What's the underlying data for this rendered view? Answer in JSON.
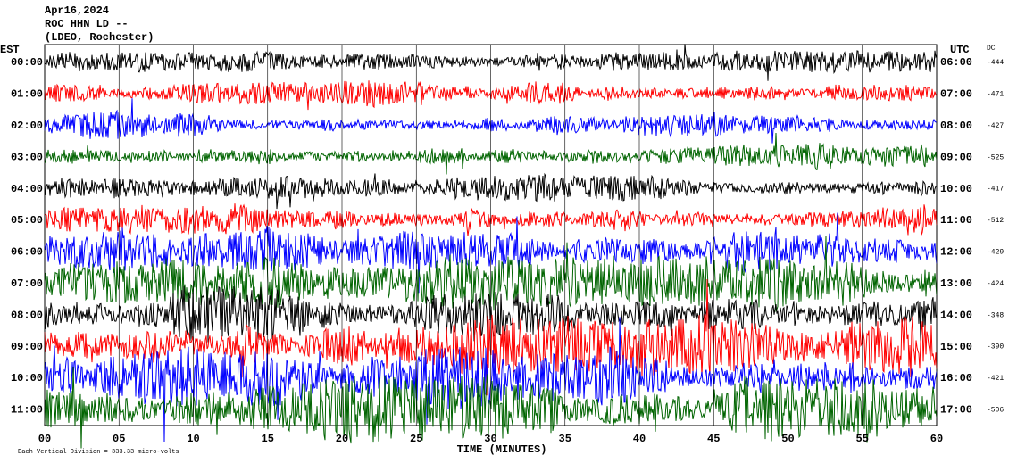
{
  "chart_data": {
    "type": "helicorder",
    "title": "Apr16,2024",
    "subtitle": "ROC HHN LD --",
    "caption": "(LDEO, Rochester)",
    "left_axis_label": "EST",
    "right_axis_label": "UTC",
    "dc_label": "DC",
    "xlabel": "TIME (MINUTES)",
    "footnote": "Each Vertical Division = 333.33 micro-volts",
    "categories": [
      "00:00",
      "01:00",
      "02:00",
      "03:00",
      "04:00",
      "05:00",
      "06:00",
      "07:00",
      "08:00",
      "09:00",
      "10:00",
      "11:00"
    ],
    "right_categories": [
      "06:00",
      "07:00",
      "08:00",
      "09:00",
      "10:00",
      "11:00",
      "12:00",
      "13:00",
      "14:00",
      "15:00",
      "16:00",
      "17:00"
    ],
    "dc_values": [
      -444,
      -471,
      -427,
      -525,
      -417,
      -512,
      -429,
      -424,
      -348,
      -390,
      -421,
      -506
    ],
    "colors": [
      "#000000",
      "#ff0000",
      "#0000ff",
      "#006400"
    ],
    "xlim": [
      0,
      60
    ],
    "xticks": [
      {
        "value": 0,
        "label": "00"
      },
      {
        "value": 5,
        "label": "05"
      },
      10,
      15,
      20,
      25,
      30,
      35,
      40,
      45,
      50,
      55,
      60
    ]
  }
}
